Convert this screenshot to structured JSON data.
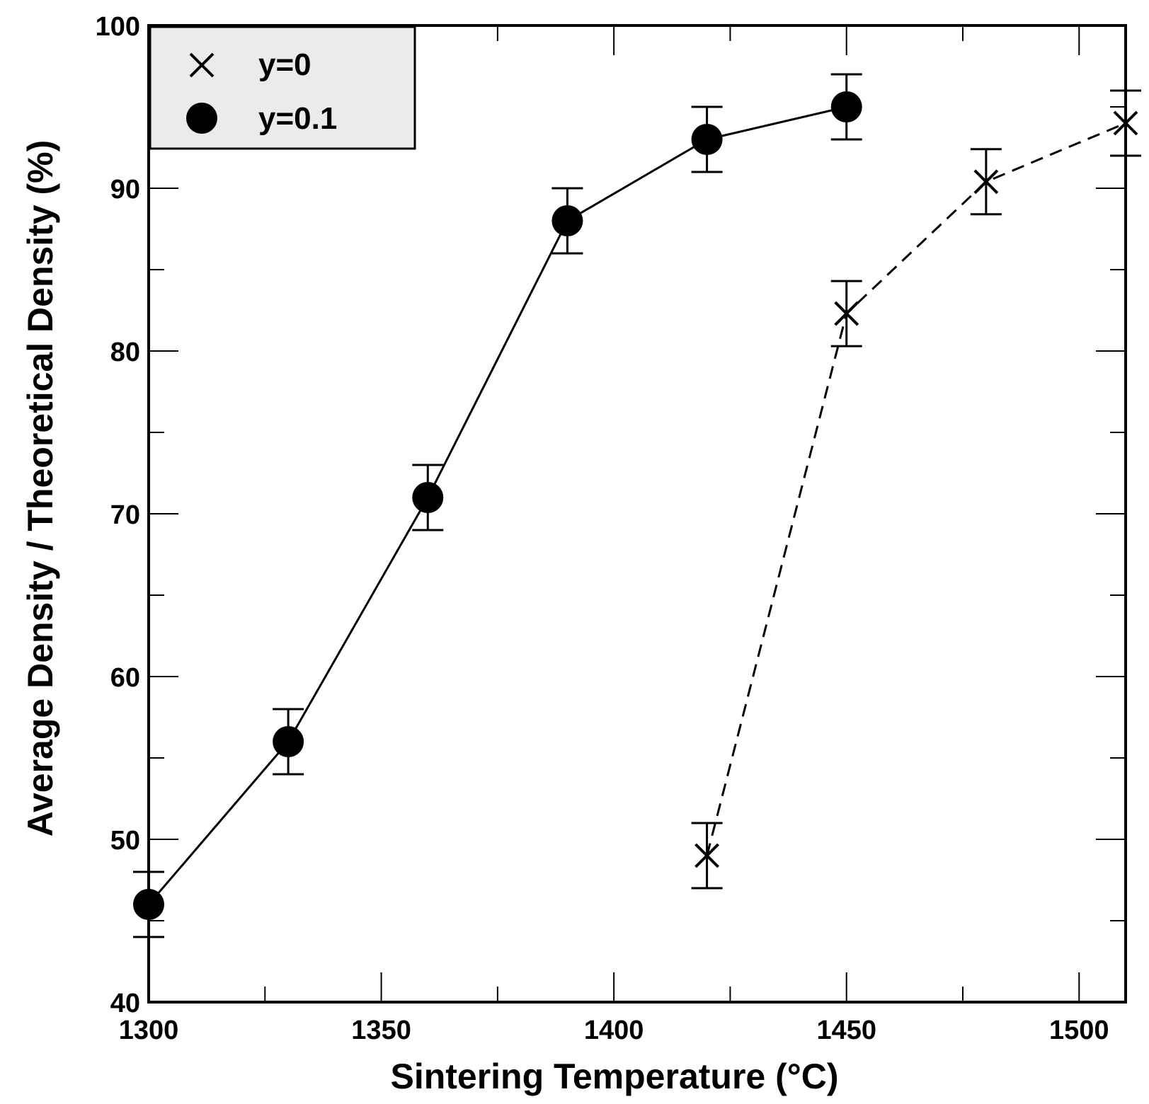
{
  "chart_data": {
    "type": "line",
    "title": "",
    "xlabel": "Sintering Temperature (°C)",
    "ylabel": "Average Density / Theoretical Density (%)",
    "xlim": [
      1300,
      1510
    ],
    "ylim": [
      40,
      100
    ],
    "x_ticks": [
      "1300",
      "1350",
      "1400",
      "1450",
      "1500"
    ],
    "y_ticks": [
      "40",
      "50",
      "60",
      "70",
      "80",
      "90",
      "100"
    ],
    "x_minor_step": 25,
    "y_minor_step": 5,
    "grid": false,
    "legend_position": "top-left",
    "series": [
      {
        "name": "y=0",
        "marker": "x",
        "line": "dashed",
        "x": [
          1420,
          1450,
          1480,
          1510
        ],
        "y": [
          49,
          82.3,
          90.4,
          94
        ],
        "err": [
          2,
          2,
          2,
          2
        ]
      },
      {
        "name": "y=0.1",
        "marker": "circle",
        "line": "solid",
        "x": [
          1300,
          1330,
          1360,
          1390,
          1420,
          1450
        ],
        "y": [
          46,
          56,
          71,
          88,
          93,
          95
        ],
        "err": [
          2,
          2,
          2,
          2,
          2,
          2
        ]
      }
    ]
  }
}
